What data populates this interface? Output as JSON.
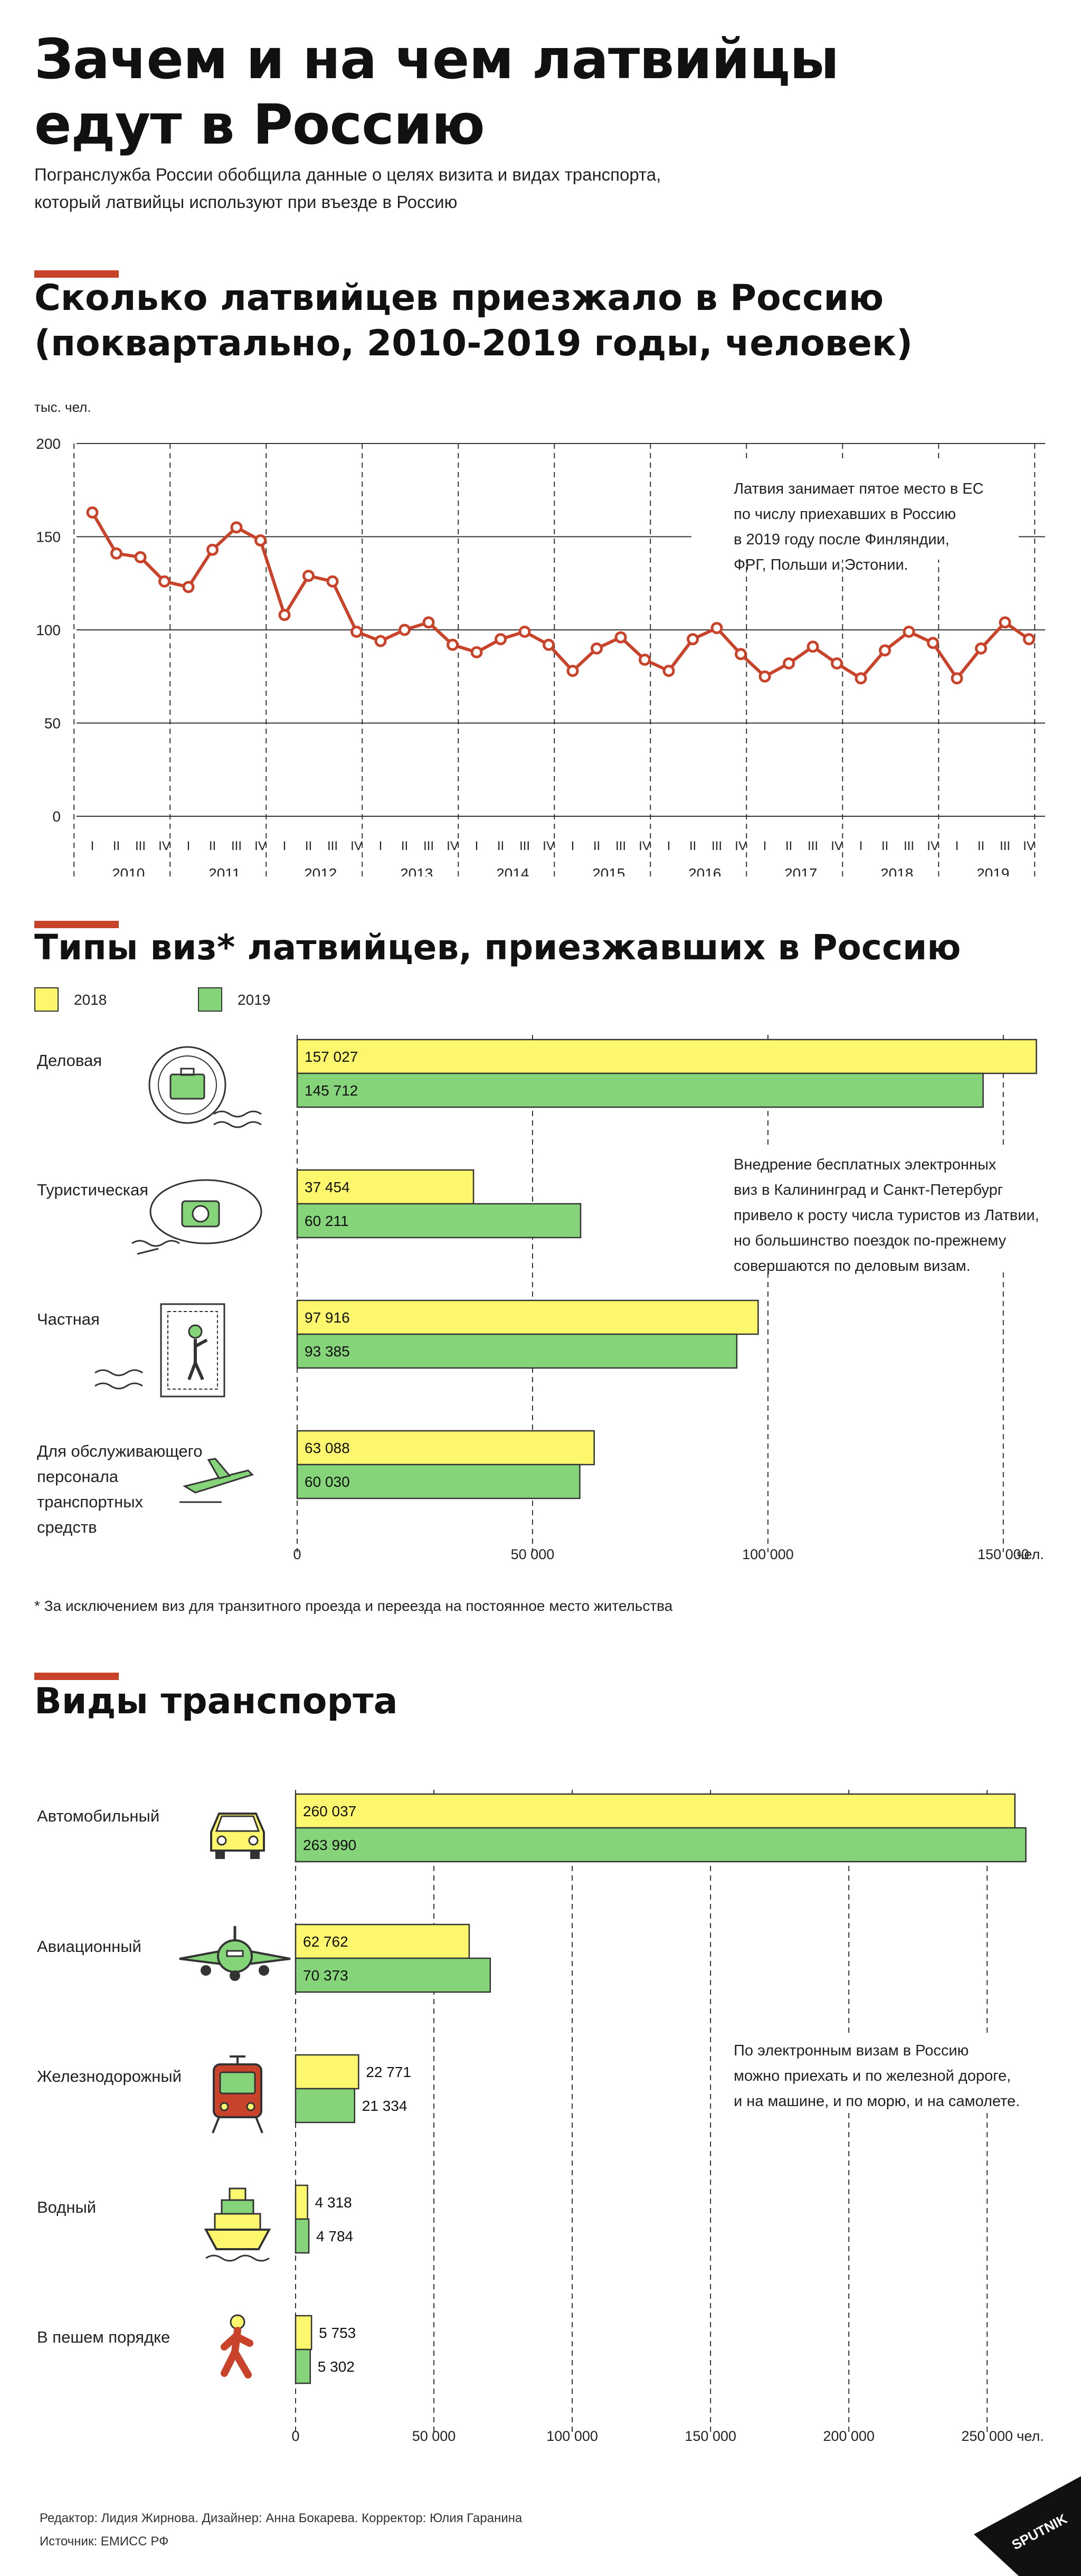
{
  "header": {
    "title_line1": "Зачем и на чем латвийцы",
    "title_line2": "едут в Россию",
    "subtitle_line1": "Погранслужба России обобщила данные о целях визита и видах транспорта,",
    "subtitle_line2": "который латвийцы используют при въезде в Россию"
  },
  "colors": {
    "accent": "#c9432a",
    "y2018": "#fcf76d",
    "y2019": "#86d47a",
    "line": "#c9432a"
  },
  "line_section": {
    "title_line1": "Сколько латвийцев приезжало в Россию",
    "title_line2": "(поквартально, 2010-2019 годы, человек)",
    "note_lines": [
      "Латвия занимает пятое место в ЕС",
      "по числу приехавших в Россию",
      "в 2019 году после Финляндии,",
      "ФРГ,  Польши и Эстонии."
    ]
  },
  "visa_section": {
    "title": "Типы виз* латвийцев, приезжавших в Россию",
    "legend_2018": "2018",
    "legend_2019": "2019",
    "labels": [
      [
        "Деловая"
      ],
      [
        "Туристическая"
      ],
      [
        "Частная"
      ],
      [
        "Для обслуживающего",
        "персонала",
        "транспортных",
        "средств"
      ]
    ],
    "note_lines": [
      "Внедрение бесплатных электронных",
      "виз в Калининград и Санкт-Петербург",
      "привело к росту числа туристов из Латвии,",
      "но большинство поездок по-прежнему",
      "совершаются по деловым визам."
    ],
    "footnote": "* За исключением виз для транзитного проезда и переезда на постоянное место жительства"
  },
  "transport_section": {
    "title": "Виды транспорта",
    "labels": [
      "Автомобильный",
      "Авиационный",
      "Железнодорожный",
      "Водный",
      "В пешем порядке"
    ],
    "note_lines": [
      "По электронным визам в Россию",
      "можно приехать и по железной дороге,",
      "и на машине, и по морю, и на самолете."
    ]
  },
  "footer": {
    "credits": "Редактор: Лидия Жирнова. Дизайнер: Анна Бокарева. Корректор: Юлия Гаранина",
    "source": "Источник: ЕМИСС РФ",
    "brand": "SPUTNIK"
  },
  "chart_data": [
    {
      "type": "line",
      "ylabel": "тыс. чел.",
      "ylim": [
        0,
        200
      ],
      "yticks": [
        0,
        50,
        100,
        150,
        200
      ],
      "quarters": [
        "I",
        "II",
        "III",
        "IV"
      ],
      "years": [
        "2010",
        "2011",
        "2012",
        "2013",
        "2014",
        "2015",
        "2016",
        "2017",
        "2018",
        "2019"
      ],
      "values": [
        163,
        141,
        139,
        126,
        123,
        143,
        155,
        148,
        108,
        129,
        126,
        99,
        94,
        100,
        104,
        92,
        88,
        95,
        99,
        92,
        78,
        90,
        96,
        84,
        78,
        95,
        101,
        87,
        75,
        82,
        91,
        82,
        74,
        89,
        99,
        93,
        74,
        90,
        104,
        95
      ]
    },
    {
      "type": "bar",
      "orientation": "horizontal",
      "series": [
        {
          "name": "2018",
          "values": [
            157027,
            37454,
            97916,
            63088
          ],
          "labels": [
            "157 027",
            "37 454",
            "97 916",
            "63 088"
          ]
        },
        {
          "name": "2019",
          "values": [
            145712,
            60211,
            93385,
            60030
          ],
          "labels": [
            "145 712",
            "60 211",
            "93 385",
            "60 030"
          ]
        }
      ],
      "xlim": [
        0,
        160000
      ],
      "xticks": [
        0,
        50000,
        100000,
        150000
      ],
      "xtick_labels": [
        "0",
        "50 000",
        "100 000",
        "150 000"
      ],
      "unit": "чел."
    },
    {
      "type": "bar",
      "orientation": "horizontal",
      "series": [
        {
          "name": "2018",
          "values": [
            260037,
            62762,
            22771,
            4318,
            5753
          ],
          "labels": [
            "260 037",
            "62 762",
            "22 771",
            "4 318",
            "5 753"
          ]
        },
        {
          "name": "2019",
          "values": [
            263990,
            70373,
            21334,
            4784,
            5302
          ],
          "labels": [
            "263 990",
            "70 373",
            "21 334",
            "4 784",
            "5 302"
          ]
        }
      ],
      "xlim": [
        0,
        270000
      ],
      "xticks": [
        0,
        50000,
        100000,
        150000,
        200000,
        250000
      ],
      "xtick_labels": [
        "0",
        "50 000",
        "100 000",
        "150 000",
        "200 000",
        "250 000"
      ],
      "unit": "чел."
    }
  ]
}
